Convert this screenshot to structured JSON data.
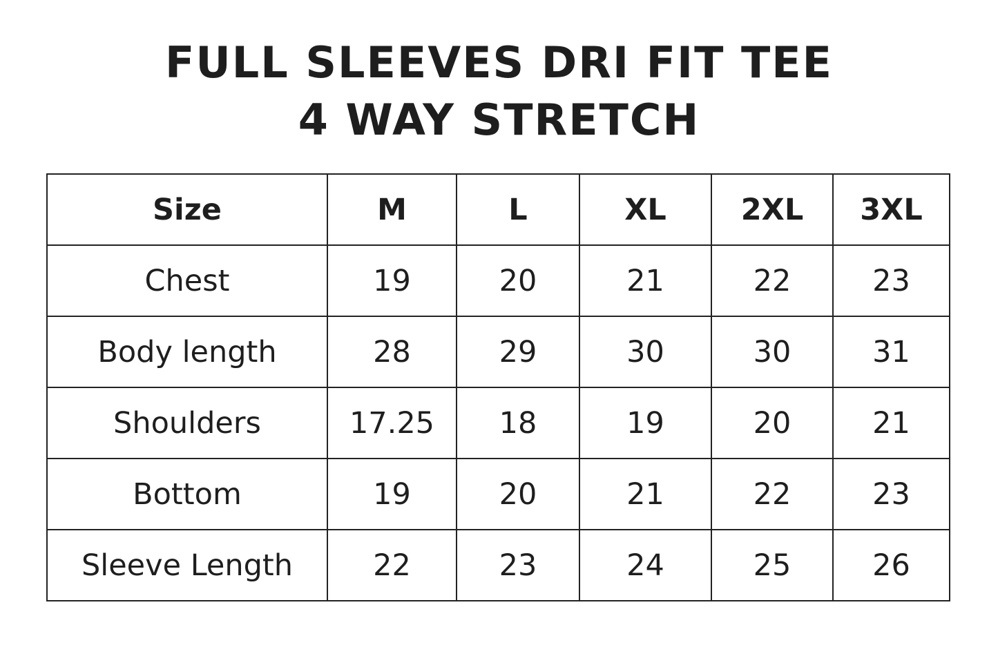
{
  "title": {
    "line1": "FULL SLEEVES DRI FIT TEE",
    "line2": "4 WAY STRETCH"
  },
  "table": {
    "header": [
      "Size",
      "M",
      "L",
      "XL",
      "2XL",
      "3XL"
    ],
    "rows": [
      [
        "Chest",
        "19",
        "20",
        "21",
        "22",
        "23"
      ],
      [
        "Body length",
        "28",
        "29",
        "30",
        "30",
        "31"
      ],
      [
        "Shoulders",
        "17.25",
        "18",
        "19",
        "20",
        "21"
      ],
      [
        "Bottom",
        "19",
        "20",
        "21",
        "22",
        "23"
      ],
      [
        "Sleeve Length",
        "22",
        "23",
        "24",
        "25",
        "26"
      ]
    ]
  }
}
